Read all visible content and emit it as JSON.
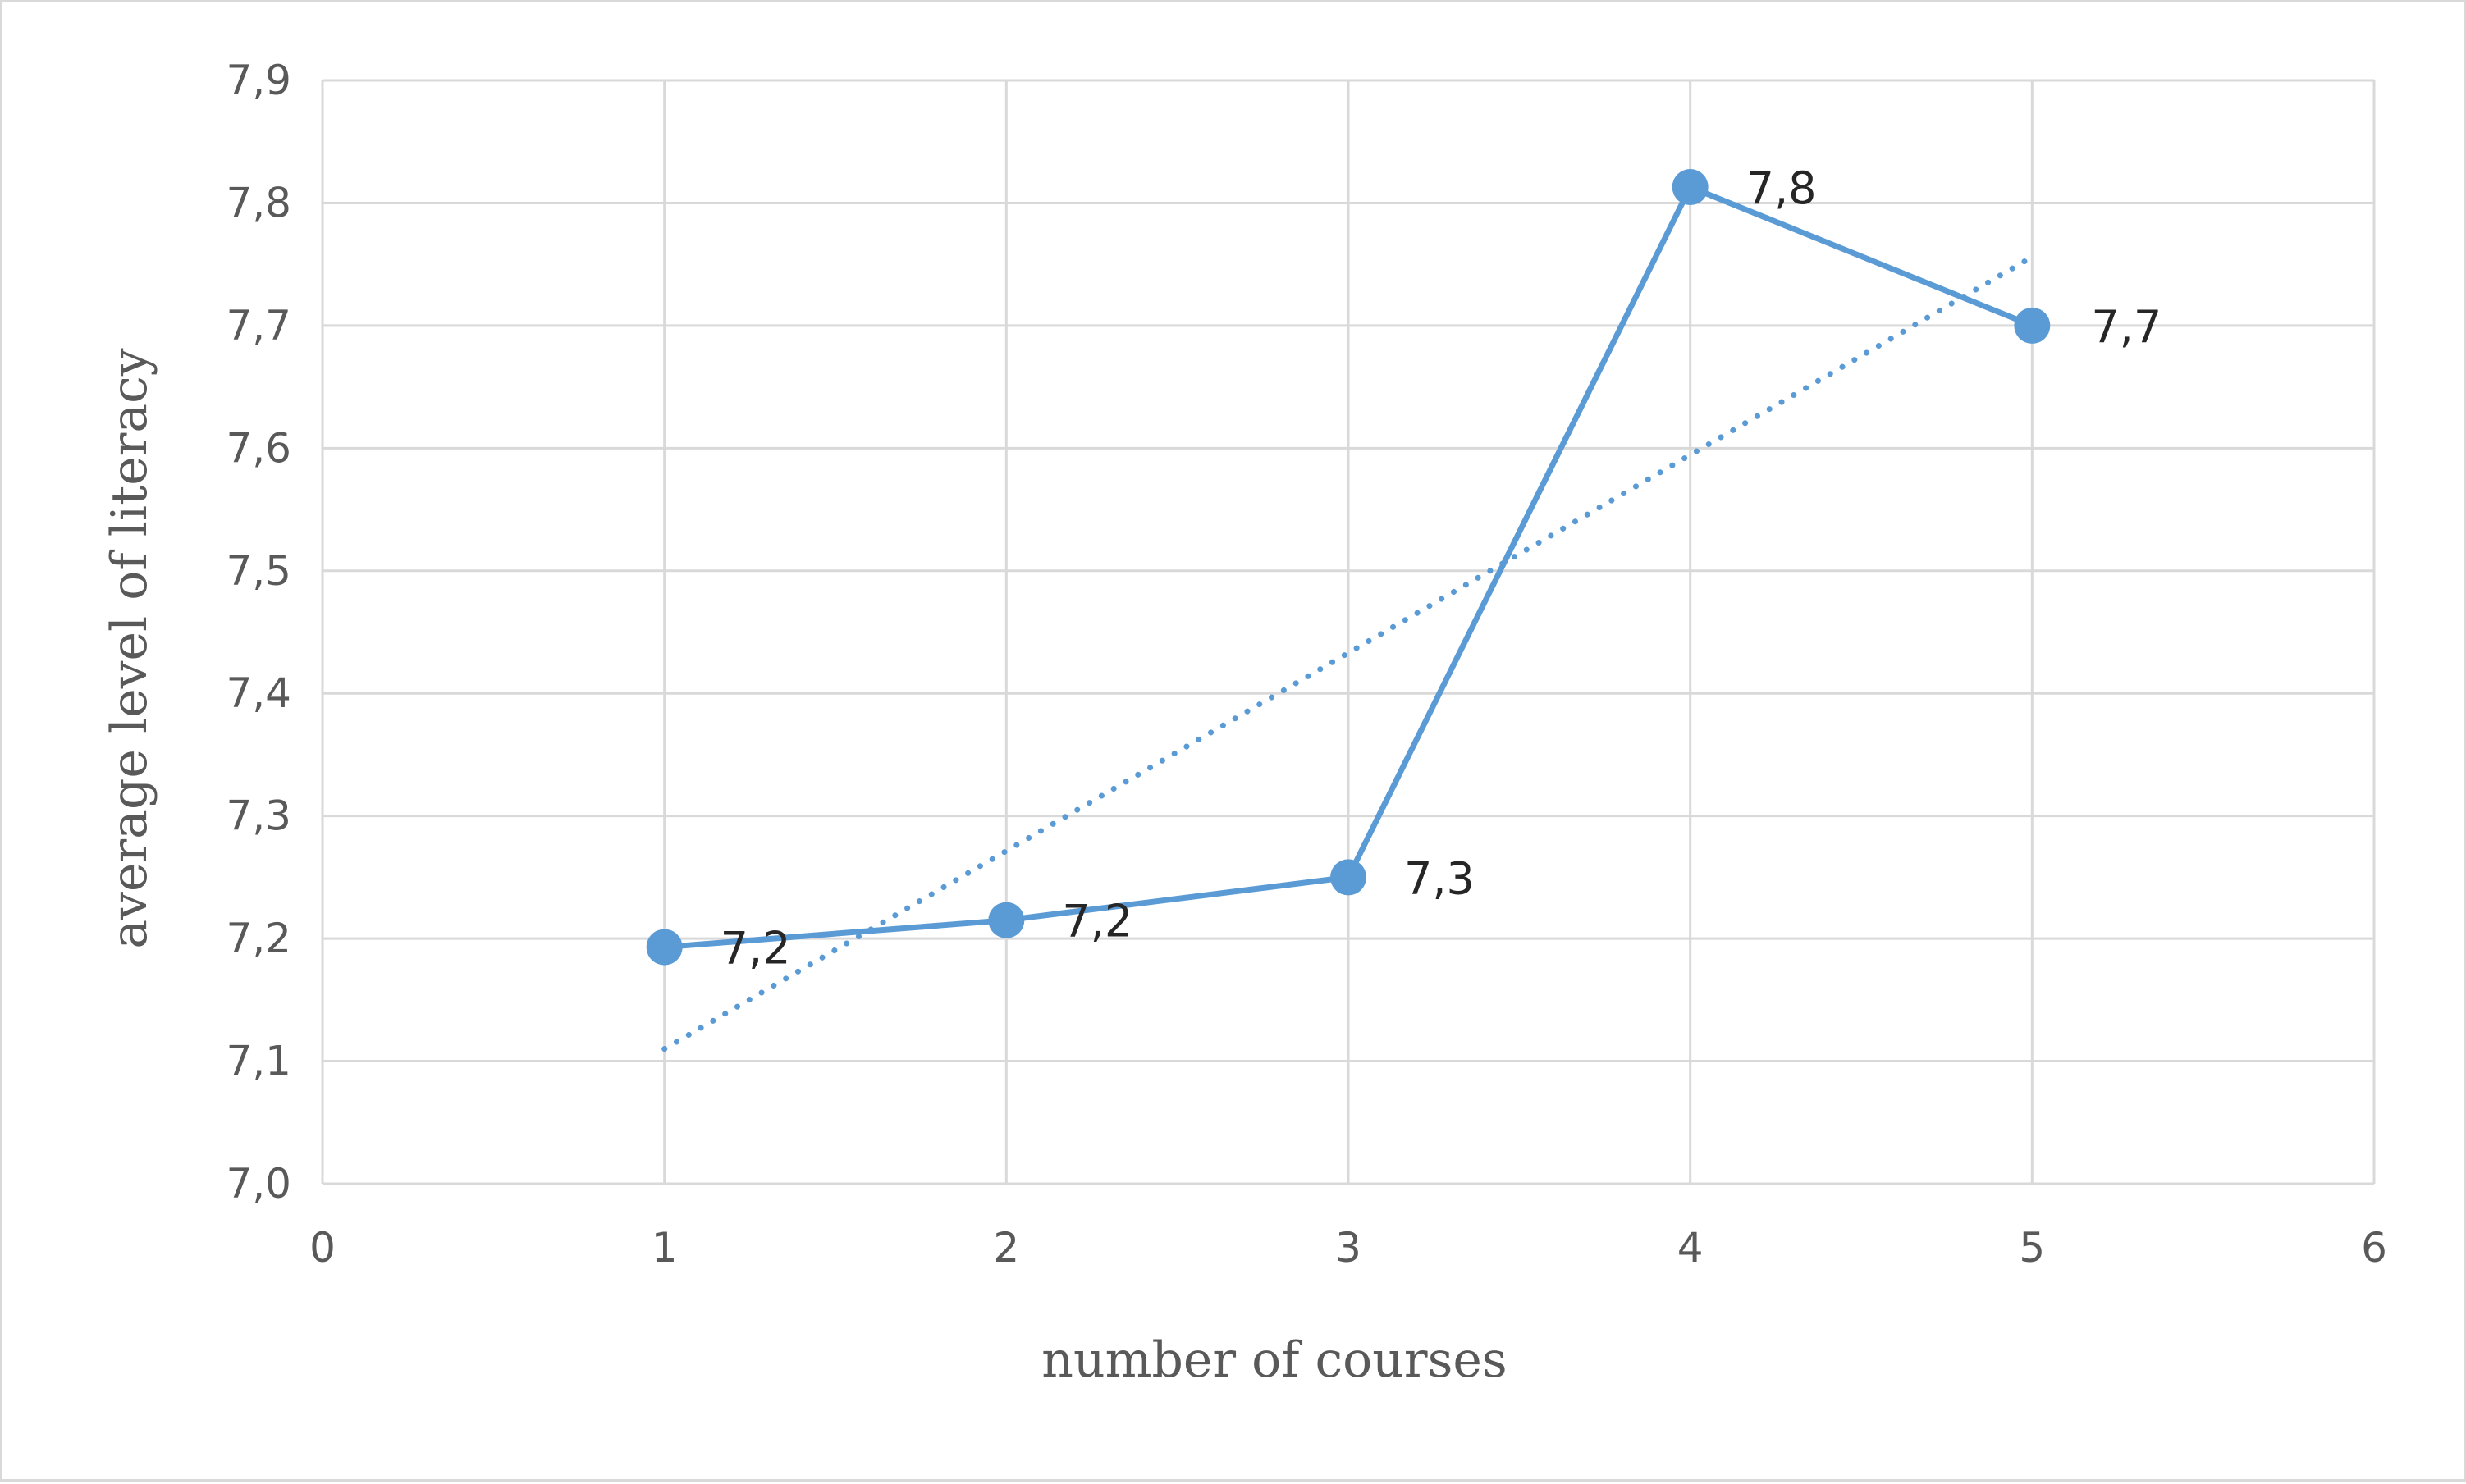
{
  "chart_data": {
    "type": "line",
    "title": "",
    "xlabel": "number of courses",
    "ylabel": "average level of literacy",
    "xlim": [
      0,
      6
    ],
    "ylim": [
      7.0,
      7.9
    ],
    "x_ticks": [
      "0",
      "1",
      "2",
      "3",
      "4",
      "5",
      "6"
    ],
    "y_ticks": [
      "7,0",
      "7,1",
      "7,2",
      "7,3",
      "7,4",
      "7,5",
      "7,6",
      "7,7",
      "7,8",
      "7,9"
    ],
    "grid": true,
    "legend": "none",
    "series": [
      {
        "x": [
          1,
          2,
          3,
          4,
          5
        ],
        "values": [
          7.193,
          7.215,
          7.25,
          7.813,
          7.7
        ],
        "data_labels": [
          "7,2",
          "7,2",
          "7,3",
          "7,8",
          "7,7"
        ],
        "color": "#5b9bd5",
        "style": "solid-with-markers"
      }
    ],
    "trendline": {
      "type": "linear",
      "x": [
        1,
        5
      ],
      "values": [
        7.11,
        7.756
      ],
      "color": "#5b9bd5",
      "style": "dotted"
    }
  }
}
